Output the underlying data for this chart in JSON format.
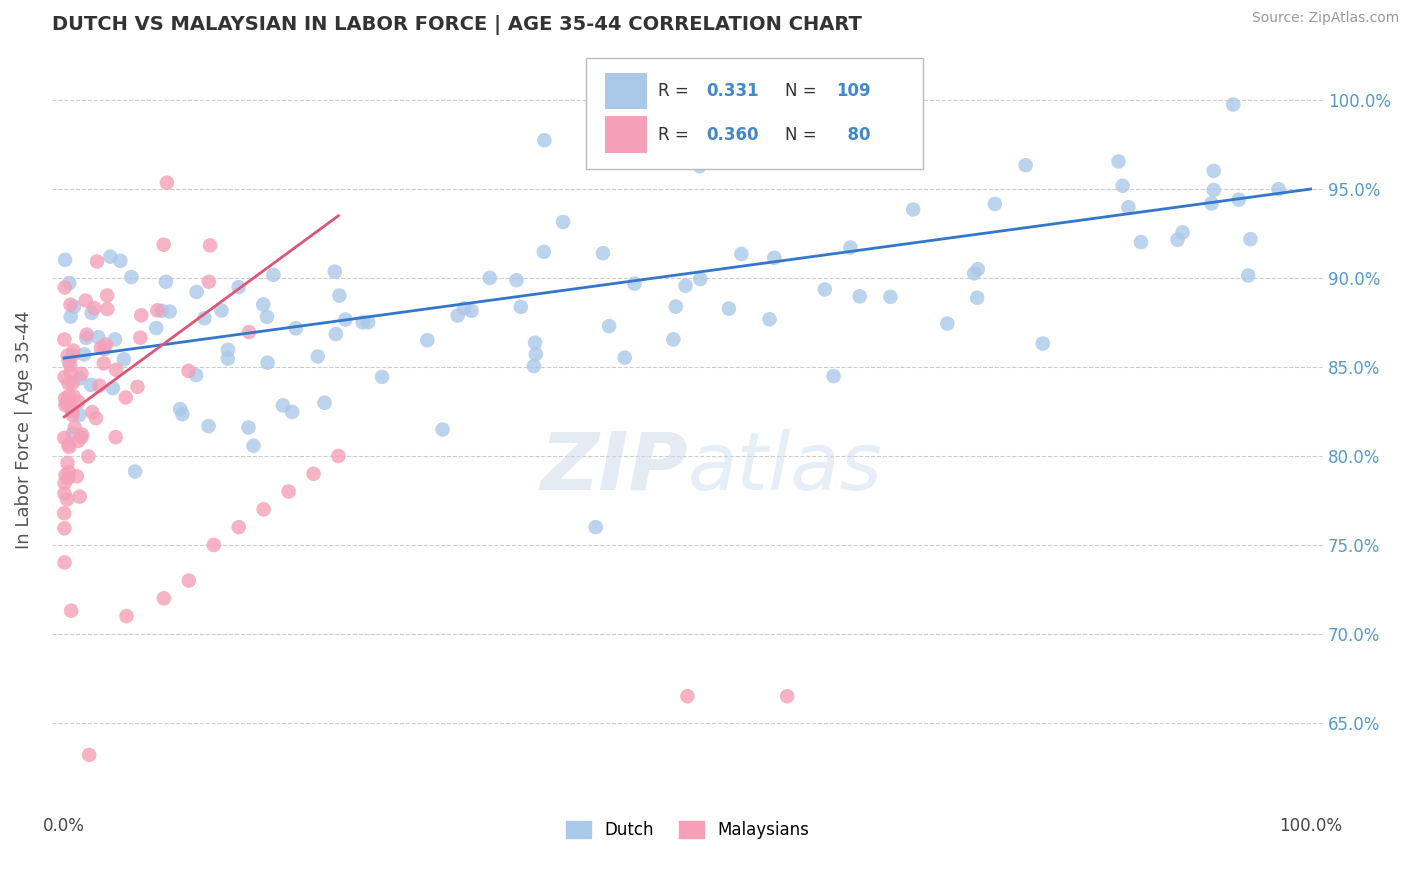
{
  "title": "DUTCH VS MALAYSIAN IN LABOR FORCE | AGE 35-44 CORRELATION CHART",
  "source": "Source: ZipAtlas.com",
  "ylabel": "In Labor Force | Age 35-44",
  "dutch_R": 0.331,
  "dutch_N": 109,
  "malay_R": 0.36,
  "malay_N": 80,
  "dutch_color": "#aac8e8",
  "malay_color": "#f4a0b8",
  "dutch_line_color": "#3377cc",
  "malay_line_color": "#dd5577",
  "background_color": "#ffffff",
  "grid_color": "#cccccc",
  "watermark_color": "#e0e8f4",
  "yticks": [
    0.65,
    0.7,
    0.75,
    0.8,
    0.85,
    0.9,
    0.95,
    1.0
  ],
  "ytick_labels": [
    "65.0%",
    "70.0%",
    "75.0%",
    "80.0%",
    "85.0%",
    "90.0%",
    "95.0%",
    "100.0%"
  ]
}
